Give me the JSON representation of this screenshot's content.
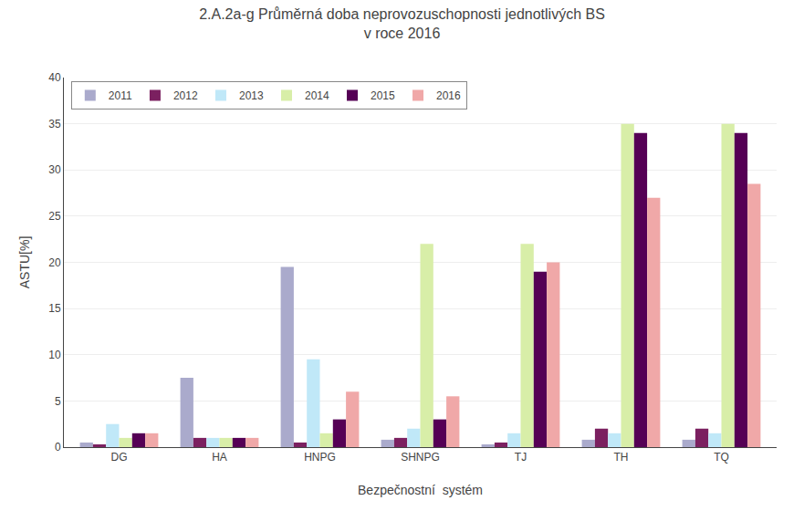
{
  "chart_data": {
    "type": "bar",
    "title": "2.A.2a-g Průměrná doba neprovozuschopnosti jednotlivých BS\nv roce 2016",
    "xlabel": "Bezpečnostní  systém",
    "ylabel": "ASTU[%]",
    "categories": [
      "DG",
      "HA",
      "HNPG",
      "SHNPG",
      "TJ",
      "TH",
      "TQ"
    ],
    "series": [
      {
        "name": "2011",
        "color": "#aaaacc",
        "values": [
          0.5,
          7.5,
          19.5,
          0.8,
          0.3,
          0.8,
          0.8
        ]
      },
      {
        "name": "2012",
        "color": "#7b2060",
        "values": [
          0.3,
          1.0,
          0.5,
          1.0,
          0.5,
          2.0,
          2.0
        ]
      },
      {
        "name": "2013",
        "color": "#c0e8f8",
        "values": [
          2.5,
          1.0,
          9.5,
          2.0,
          1.5,
          1.5,
          1.5
        ]
      },
      {
        "name": "2014",
        "color": "#d8eea8",
        "values": [
          1.0,
          1.0,
          1.5,
          22.0,
          22.0,
          35.0,
          35.0
        ]
      },
      {
        "name": "2015",
        "color": "#550055",
        "values": [
          1.5,
          1.0,
          3.0,
          3.0,
          19.0,
          34.0,
          34.0
        ]
      },
      {
        "name": "2016",
        "color": "#f0a8a8",
        "values": [
          1.5,
          1.0,
          6.0,
          5.5,
          20.0,
          27.0,
          28.5
        ]
      }
    ],
    "ylim": [
      0,
      40
    ],
    "yticks": [
      0,
      5,
      10,
      15,
      20,
      25,
      30,
      35,
      40
    ],
    "grid": true,
    "legend": "upper left"
  }
}
